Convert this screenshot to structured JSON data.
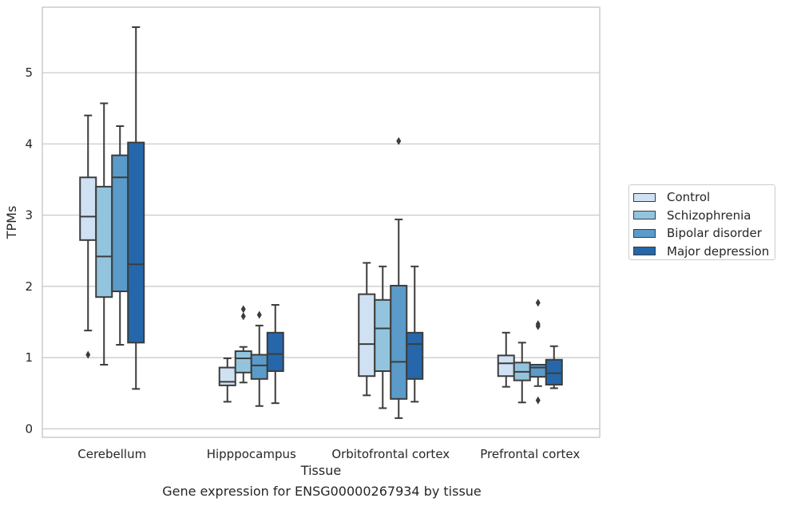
{
  "chart_data": {
    "type": "boxplot",
    "title": "",
    "caption": "Gene expression for ENSG00000267934 by tissue",
    "xlabel": "Tissue",
    "ylabel": "TPMs",
    "ylim": [
      -0.12,
      5.92
    ],
    "yticks": [
      0,
      1,
      2,
      3,
      4,
      5
    ],
    "grid": "horizontal",
    "legend_placement": "right",
    "categories": [
      "Cerebellum",
      "Hipppocampus",
      "Orbitofrontal cortex",
      "Prefrontal cortex"
    ],
    "series": [
      {
        "name": "Control",
        "color": "#cfe1f2",
        "boxes": [
          {
            "whislo": 1.38,
            "q1": 2.65,
            "med": 2.98,
            "q3": 3.53,
            "whishi": 4.4,
            "fliers": [
              1.04
            ]
          },
          {
            "whislo": 0.38,
            "q1": 0.61,
            "med": 0.66,
            "q3": 0.86,
            "whishi": 0.99,
            "fliers": []
          },
          {
            "whislo": 0.47,
            "q1": 0.74,
            "med": 1.19,
            "q3": 1.89,
            "whishi": 2.33,
            "fliers": []
          },
          {
            "whislo": 0.59,
            "q1": 0.74,
            "med": 0.92,
            "q3": 1.03,
            "whishi": 1.35,
            "fliers": []
          }
        ]
      },
      {
        "name": "Schizophrenia",
        "color": "#93c4de",
        "boxes": [
          {
            "whislo": 0.9,
            "q1": 1.85,
            "med": 2.42,
            "q3": 3.4,
            "whishi": 4.57,
            "fliers": []
          },
          {
            "whislo": 0.65,
            "q1": 0.79,
            "med": 0.99,
            "q3": 1.09,
            "whishi": 1.15,
            "fliers": [
              1.58,
              1.68
            ]
          },
          {
            "whislo": 0.29,
            "q1": 0.81,
            "med": 1.41,
            "q3": 1.81,
            "whishi": 2.28,
            "fliers": []
          },
          {
            "whislo": 0.37,
            "q1": 0.68,
            "med": 0.8,
            "q3": 0.93,
            "whishi": 1.21,
            "fliers": []
          }
        ]
      },
      {
        "name": "Bipolar disorder",
        "color": "#5a9bc9",
        "boxes": [
          {
            "whislo": 1.18,
            "q1": 1.93,
            "med": 3.53,
            "q3": 3.84,
            "whishi": 4.25,
            "fliers": []
          },
          {
            "whislo": 0.32,
            "q1": 0.7,
            "med": 0.89,
            "q3": 1.04,
            "whishi": 1.45,
            "fliers": [
              1.6
            ]
          },
          {
            "whislo": 0.15,
            "q1": 0.42,
            "med": 0.94,
            "q3": 2.01,
            "whishi": 2.94,
            "fliers": [
              4.04
            ]
          },
          {
            "whislo": 0.6,
            "q1": 0.73,
            "med": 0.86,
            "q3": 0.9,
            "whishi": 0.9,
            "fliers": [
              0.4,
              1.44,
              1.47,
              1.77
            ]
          }
        ]
      },
      {
        "name": "Major depression",
        "color": "#2567aa",
        "boxes": [
          {
            "whislo": 0.56,
            "q1": 1.21,
            "med": 2.31,
            "q3": 4.02,
            "whishi": 5.64,
            "fliers": []
          },
          {
            "whislo": 0.36,
            "q1": 0.81,
            "med": 1.05,
            "q3": 1.35,
            "whishi": 1.74,
            "fliers": []
          },
          {
            "whislo": 0.38,
            "q1": 0.7,
            "med": 1.19,
            "q3": 1.35,
            "whishi": 2.28,
            "fliers": []
          },
          {
            "whislo": 0.57,
            "q1": 0.62,
            "med": 0.78,
            "q3": 0.97,
            "whishi": 1.16,
            "fliers": []
          }
        ]
      }
    ]
  }
}
